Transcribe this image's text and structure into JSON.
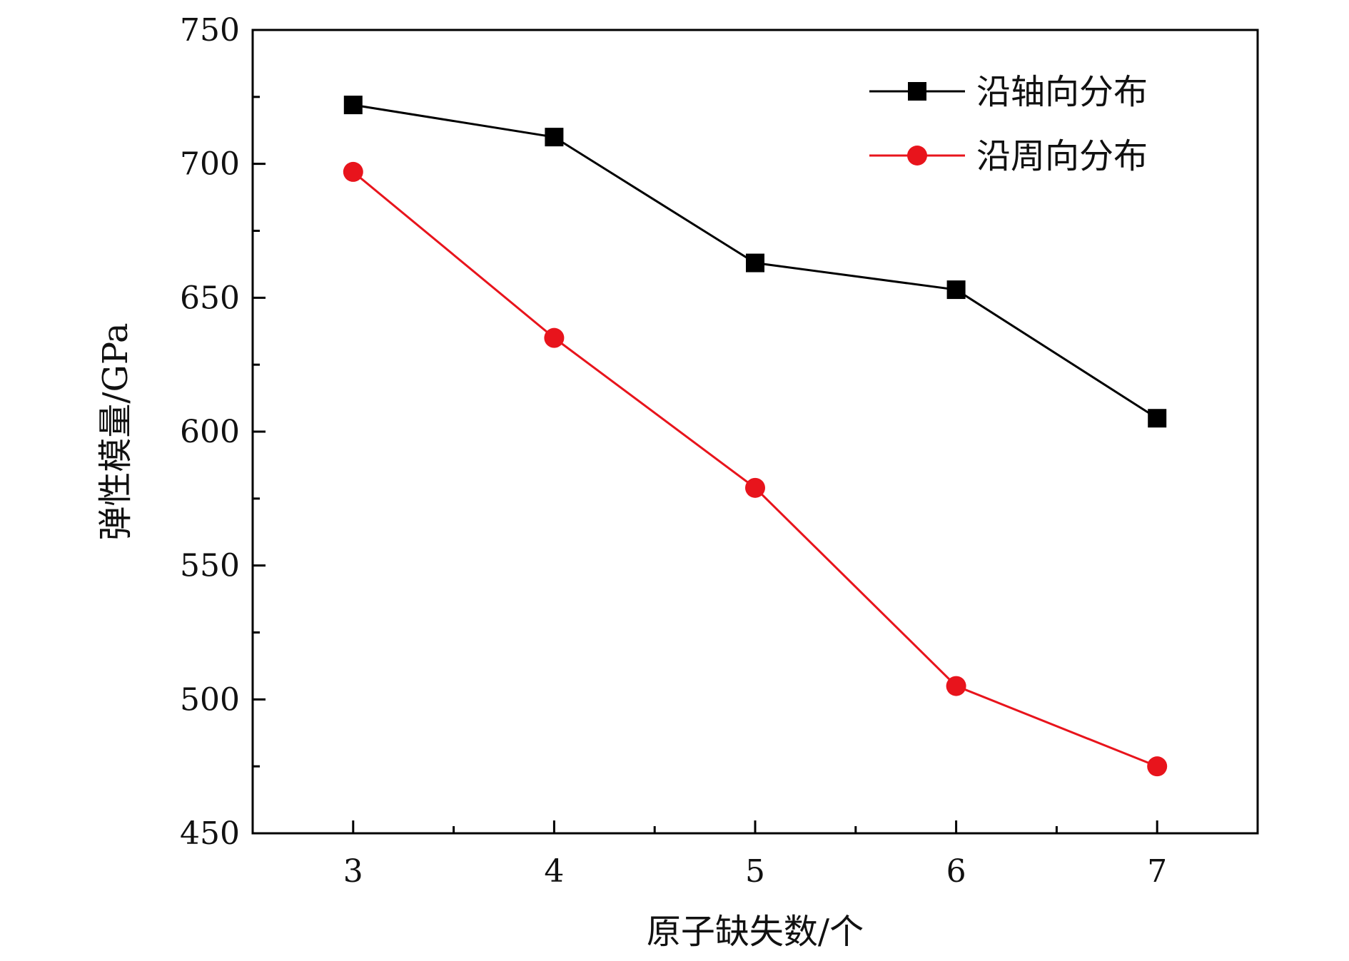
{
  "chart_data": {
    "type": "line",
    "xlabel": "原子缺失数/个",
    "ylabel": "弹性模量/GPa",
    "x": [
      3,
      4,
      5,
      6,
      7
    ],
    "x_ticks": [
      3,
      4,
      5,
      6,
      7
    ],
    "x_tick_labels": [
      "3",
      "4",
      "5",
      "6",
      "7"
    ],
    "xlim": [
      2.5,
      7.5
    ],
    "y_ticks": [
      450,
      500,
      550,
      600,
      650,
      700,
      750
    ],
    "y_tick_labels": [
      "450",
      "500",
      "550",
      "600",
      "650",
      "700",
      "750"
    ],
    "ylim": [
      450,
      750
    ],
    "grid": false,
    "legend_position": "top-right",
    "series": [
      {
        "name": "沿轴向分布",
        "color": "#000000",
        "marker": "square",
        "values": [
          722,
          710,
          663,
          653,
          605
        ]
      },
      {
        "name": "沿周向分布",
        "color": "#e8141c",
        "marker": "circle",
        "values": [
          697,
          635,
          579,
          505,
          475
        ]
      }
    ]
  }
}
